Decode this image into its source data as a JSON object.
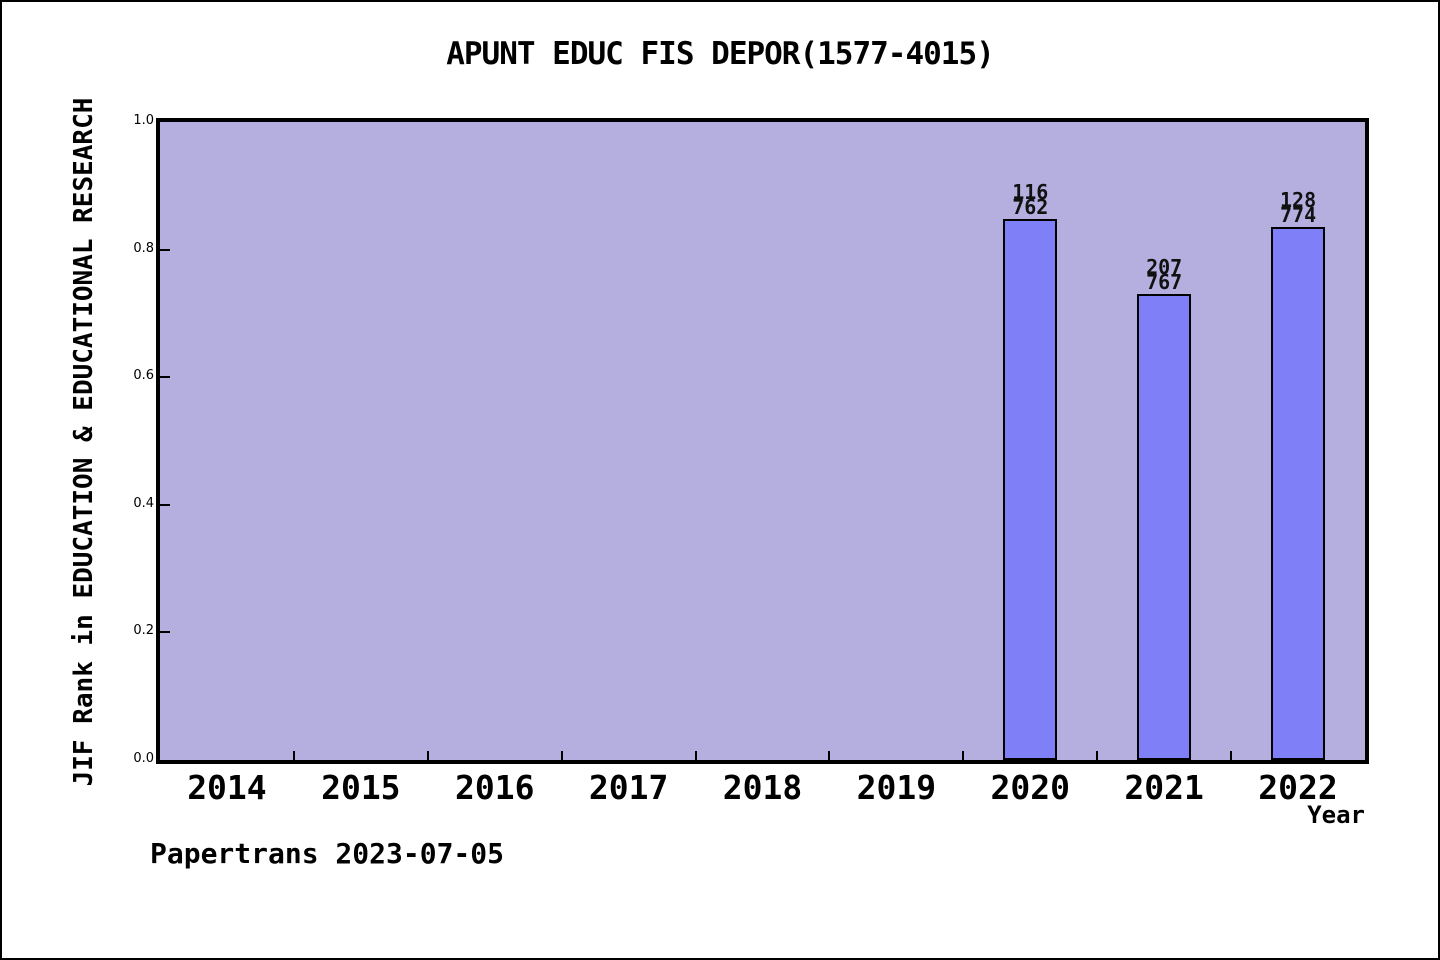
{
  "watermark": "Papertrans 2023-07-05",
  "chart_data": {
    "type": "bar",
    "title": "APUNT EDUC FIS DEPOR(1577-4015)",
    "xlabel": "Year",
    "ylabel": "JIF Rank in EDUCATION & EDUCATIONAL RESEARCH",
    "x_categories": [
      "2014",
      "2015",
      "2016",
      "2017",
      "2018",
      "2019",
      "2020",
      "2021",
      "2022"
    ],
    "xlim": [
      2013.5,
      2022.5
    ],
    "ylim": [
      0.0,
      1.0
    ],
    "ytick_labels": [
      "0.0",
      "0.2",
      "0.4",
      "0.6",
      "0.8",
      "1.0"
    ],
    "yticks": [
      0.0,
      0.2,
      0.4,
      0.6,
      0.8,
      1.0
    ],
    "grid": false,
    "legend_position": "none",
    "bars": [
      {
        "year": 2020,
        "rank": "116",
        "total": "762",
        "height_fraction": 0.848
      },
      {
        "year": 2021,
        "rank": "207",
        "total": "767",
        "height_fraction": 0.73
      },
      {
        "year": 2022,
        "rank": "128",
        "total": "774",
        "height_fraction": 0.835
      }
    ],
    "colors": {
      "bar_fill": "#7f7ff7",
      "bar_border": "#000000",
      "plot_background": "#b5afe0",
      "page_background": "#ffffff",
      "text": "#000000"
    }
  }
}
